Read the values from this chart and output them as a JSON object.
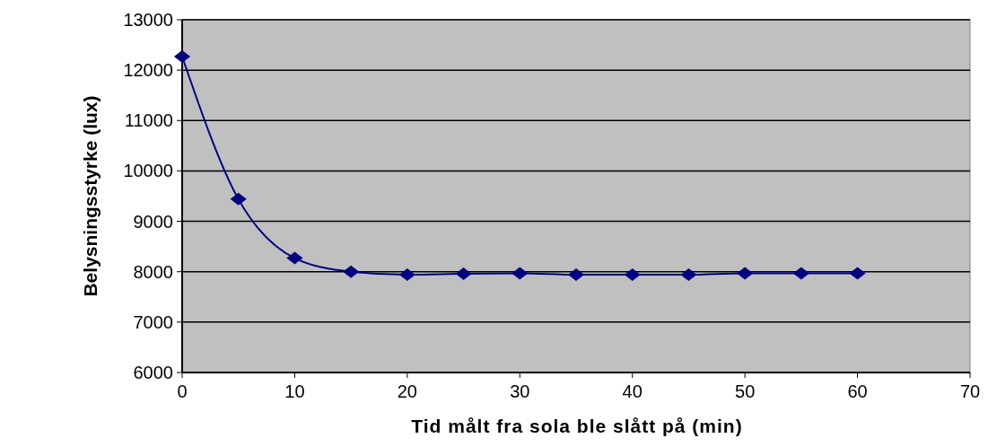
{
  "chart_data": {
    "type": "line",
    "xlabel": "Tid målt fra sola ble slått på (min)",
    "ylabel": "Belysningsstyrke (lux)",
    "x": [
      0,
      5,
      10,
      15,
      20,
      25,
      30,
      35,
      40,
      45,
      50,
      55,
      60
    ],
    "series": [
      {
        "color": "#000080",
        "values": [
          12270,
          9440,
          8270,
          8000,
          7940,
          7960,
          7970,
          7940,
          7940,
          7940,
          7970,
          7970,
          7970
        ]
      }
    ],
    "xlim": [
      0,
      70
    ],
    "xticks": [
      0,
      10,
      20,
      30,
      40,
      50,
      60,
      70
    ],
    "ylim": [
      6000,
      13000
    ],
    "yticks": [
      6000,
      7000,
      8000,
      9000,
      10000,
      11000,
      12000,
      13000
    ],
    "grid": "y",
    "marker": "diamond",
    "line_style": "solid"
  }
}
